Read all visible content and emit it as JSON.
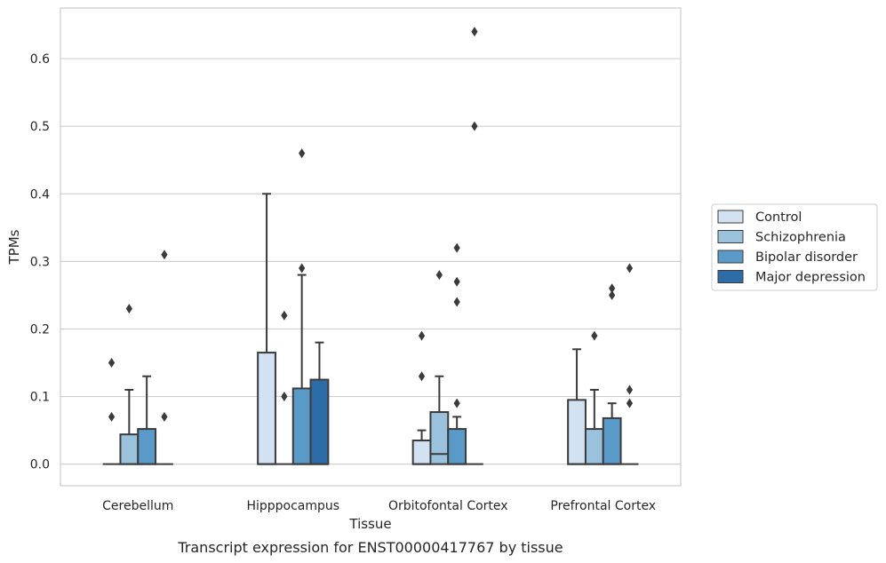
{
  "caption": "Transcript expression for ENST00000417767 by tissue",
  "chart_data": {
    "type": "box",
    "xlabel": "Tissue",
    "ylabel": "TPMs",
    "ylim": [
      -0.032,
      0.675
    ],
    "yticks": [
      "0.0",
      "0.1",
      "0.2",
      "0.3",
      "0.4",
      "0.5",
      "0.6"
    ],
    "grid": "horizontal",
    "legend_position": "right",
    "categories": [
      "Cerebellum",
      "Hipppocampus",
      "Orbitofontal Cortex",
      "Prefrontal Cortex"
    ],
    "series": [
      {
        "name": "Control",
        "color": "#d3e2f2",
        "boxes": [
          {
            "q1": 0,
            "median": 0,
            "q3": 0,
            "whisker_low": 0,
            "whisker_high": 0,
            "outliers": [
              0.15,
              0.07
            ]
          },
          {
            "q1": 0,
            "median": 0,
            "q3": 0.165,
            "whisker_low": 0,
            "whisker_high": 0.4,
            "outliers": []
          },
          {
            "q1": 0,
            "median": 0,
            "q3": 0.035,
            "whisker_low": 0,
            "whisker_high": 0.05,
            "outliers": [
              0.19,
              0.13
            ]
          },
          {
            "q1": 0,
            "median": 0,
            "q3": 0.095,
            "whisker_low": 0,
            "whisker_high": 0.17,
            "outliers": []
          }
        ]
      },
      {
        "name": "Schizophrenia",
        "color": "#9ac2dc",
        "boxes": [
          {
            "q1": 0,
            "median": 0,
            "q3": 0.044,
            "whisker_low": 0,
            "whisker_high": 0.11,
            "outliers": [
              0.23
            ]
          },
          {
            "q1": 0,
            "median": 0,
            "q3": 0,
            "whisker_low": 0,
            "whisker_high": 0,
            "outliers": [
              0.22,
              0.1
            ]
          },
          {
            "q1": 0,
            "median": 0.015,
            "q3": 0.077,
            "whisker_low": 0,
            "whisker_high": 0.13,
            "outliers": [
              0.28
            ]
          },
          {
            "q1": 0,
            "median": 0,
            "q3": 0.052,
            "whisker_low": 0,
            "whisker_high": 0.11,
            "outliers": [
              0.19
            ]
          }
        ]
      },
      {
        "name": "Bipolar disorder",
        "color": "#5a9ac8",
        "boxes": [
          {
            "q1": 0,
            "median": 0,
            "q3": 0.052,
            "whisker_low": 0,
            "whisker_high": 0.13,
            "outliers": []
          },
          {
            "q1": 0,
            "median": 0,
            "q3": 0.112,
            "whisker_low": 0,
            "whisker_high": 0.28,
            "outliers": [
              0.46,
              0.29
            ]
          },
          {
            "q1": 0,
            "median": 0,
            "q3": 0.052,
            "whisker_low": 0,
            "whisker_high": 0.07,
            "outliers": [
              0.32,
              0.27,
              0.24,
              0.09
            ]
          },
          {
            "q1": 0,
            "median": 0,
            "q3": 0.068,
            "whisker_low": 0,
            "whisker_high": 0.09,
            "outliers": [
              0.26,
              0.25
            ]
          }
        ]
      },
      {
        "name": "Major depression",
        "color": "#2e6ca8",
        "boxes": [
          {
            "q1": 0,
            "median": 0,
            "q3": 0,
            "whisker_low": 0,
            "whisker_high": 0,
            "outliers": [
              0.31,
              0.07
            ]
          },
          {
            "q1": 0,
            "median": 0,
            "q3": 0.125,
            "whisker_low": 0,
            "whisker_high": 0.18,
            "outliers": []
          },
          {
            "q1": 0,
            "median": 0,
            "q3": 0,
            "whisker_low": 0,
            "whisker_high": 0,
            "outliers": [
              0.64,
              0.5
            ]
          },
          {
            "q1": 0,
            "median": 0,
            "q3": 0,
            "whisker_low": 0,
            "whisker_high": 0,
            "outliers": [
              0.29,
              0.11,
              0.09
            ]
          }
        ]
      }
    ]
  }
}
